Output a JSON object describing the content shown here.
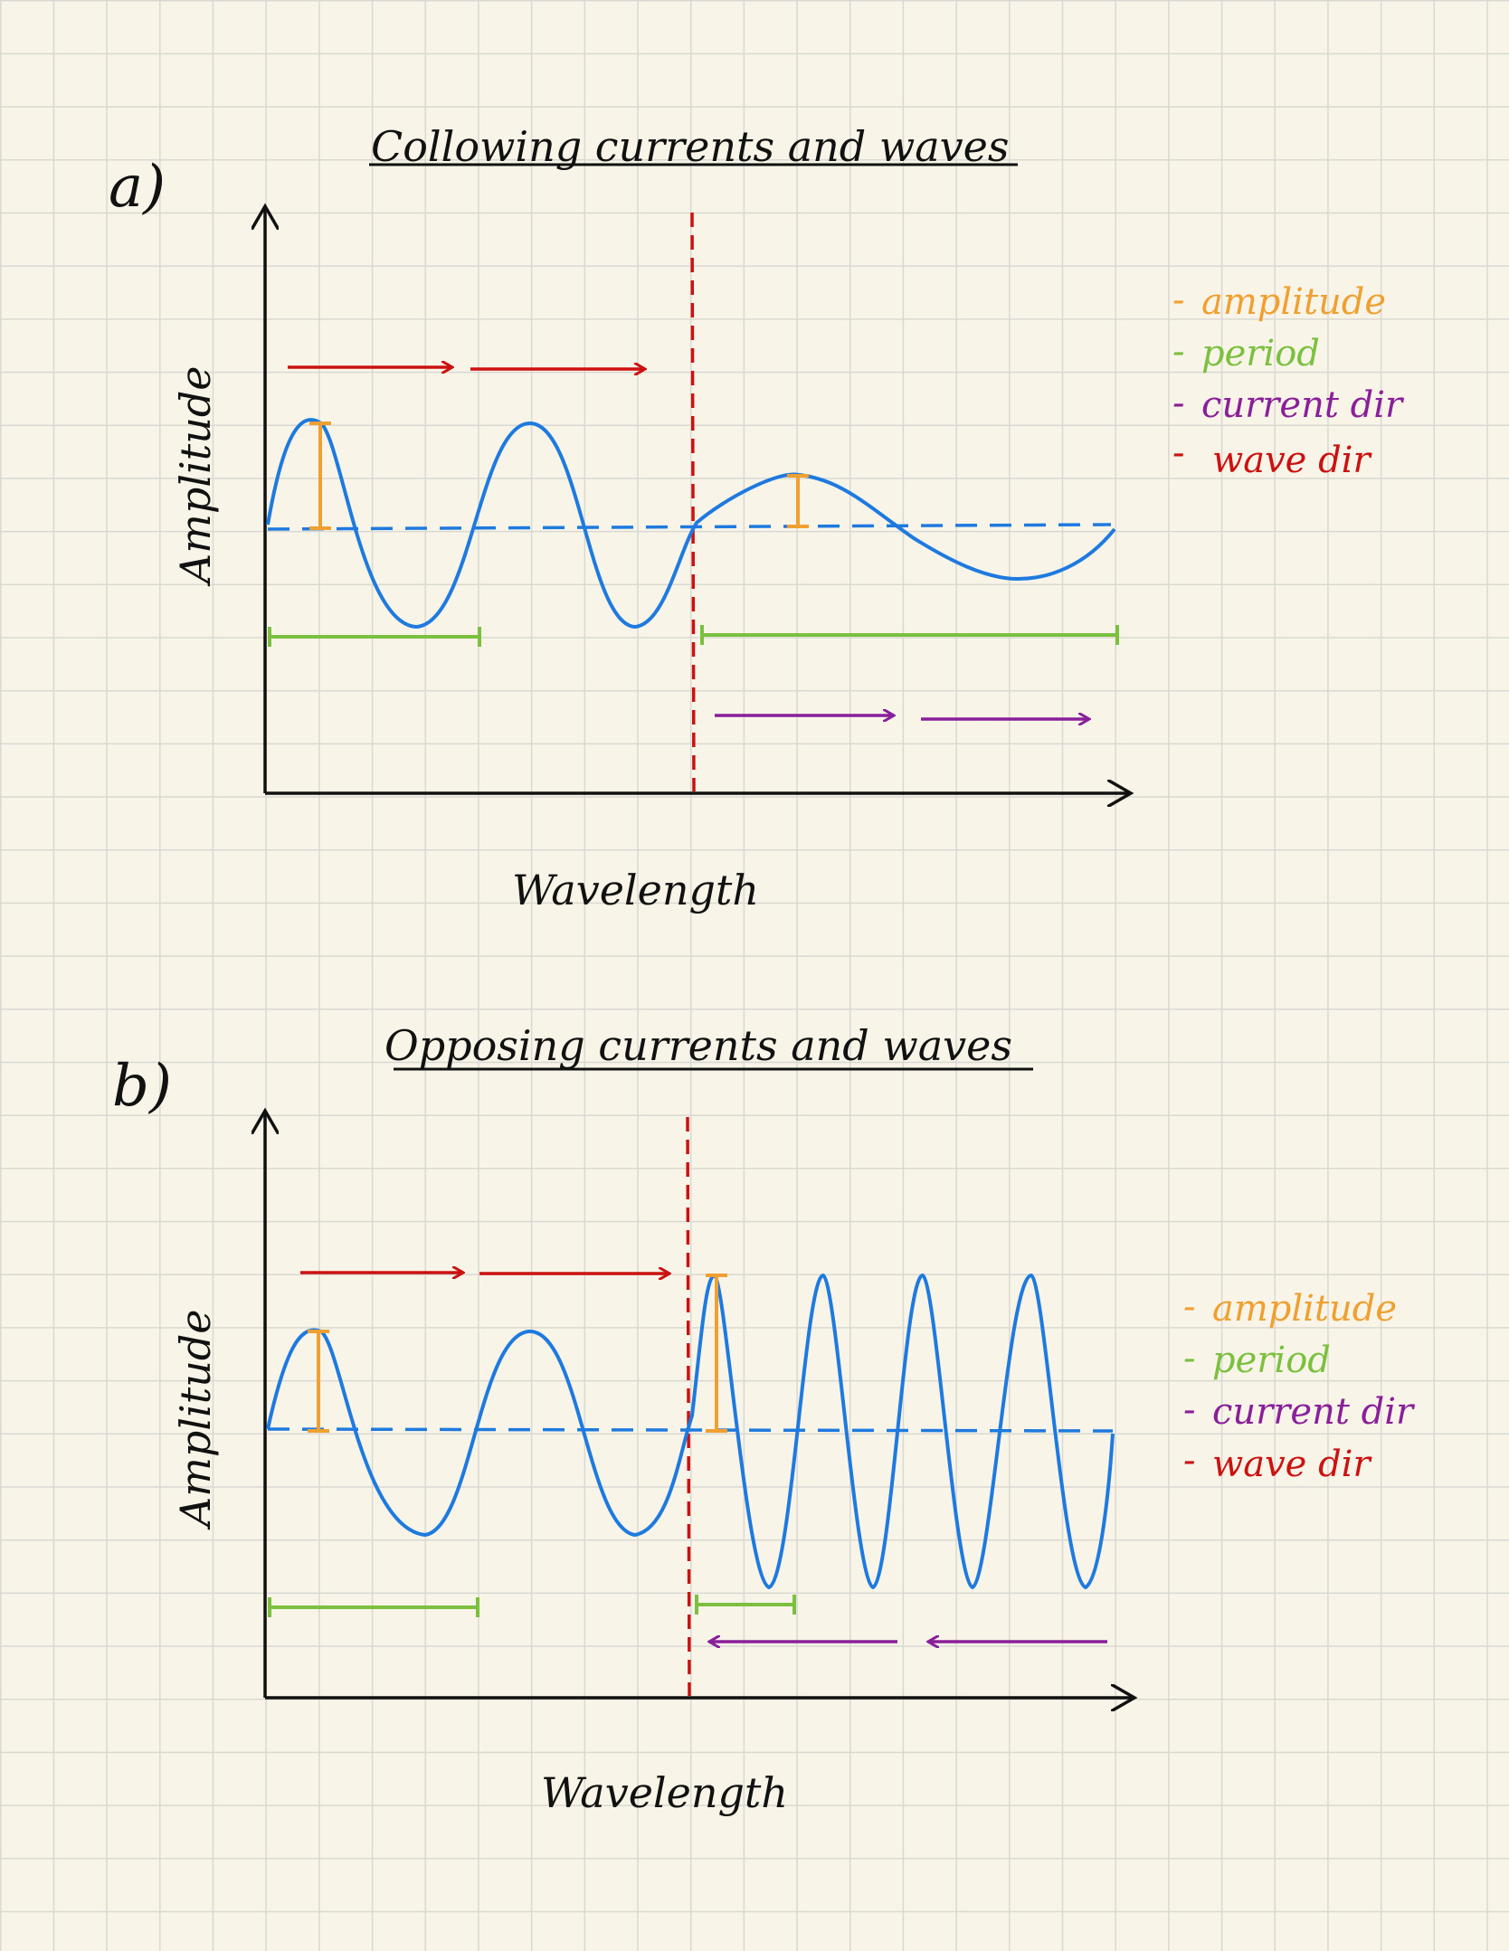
{
  "panels": [
    {
      "id": "a",
      "label": "a)",
      "title": "Collowing currents and waves",
      "xlabel": "Wavelength",
      "ylabel": "Amplitude",
      "legend": [
        "amplitude",
        "period",
        "current dir",
        "wave dir"
      ]
    },
    {
      "id": "b",
      "label": "b)",
      "title": "Opposing currents and waves",
      "xlabel": "Wavelength",
      "ylabel": "Amplitude",
      "legend": [
        "amplitude",
        "period",
        "current dir",
        "wave dir"
      ]
    }
  ],
  "colors": {
    "wave": "#1f7ae0",
    "amplitude": "#f0a030",
    "period": "#7cc040",
    "current_dir": "#8a1f9a",
    "wave_dir": "#cc1111",
    "ink": "#111111",
    "grid": "#d9d8d2",
    "paper": "#f8f5e8"
  },
  "legend_dash": "-"
}
